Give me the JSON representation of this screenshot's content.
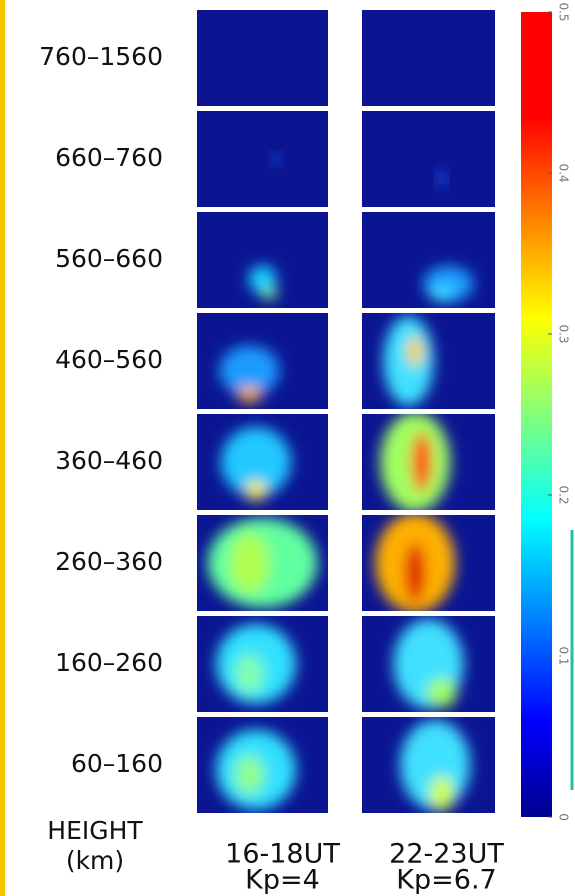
{
  "rows": [
    "760–1560",
    "660–760",
    "560–660",
    "460–560",
    "360–460",
    "260–360",
    "160–260",
    "60–160"
  ],
  "axis_label": [
    "HEIGHT",
    "(km)"
  ],
  "columns": [
    {
      "time": "16-18UT",
      "kp": "Kp=4"
    },
    {
      "time": "22-23UT",
      "kp": "Kp=6.7"
    }
  ],
  "colorbar": {
    "lim": [
      0,
      0.5
    ],
    "ticks": [
      0,
      0.1,
      0.2,
      0.3,
      0.4,
      0.5
    ]
  }
}
